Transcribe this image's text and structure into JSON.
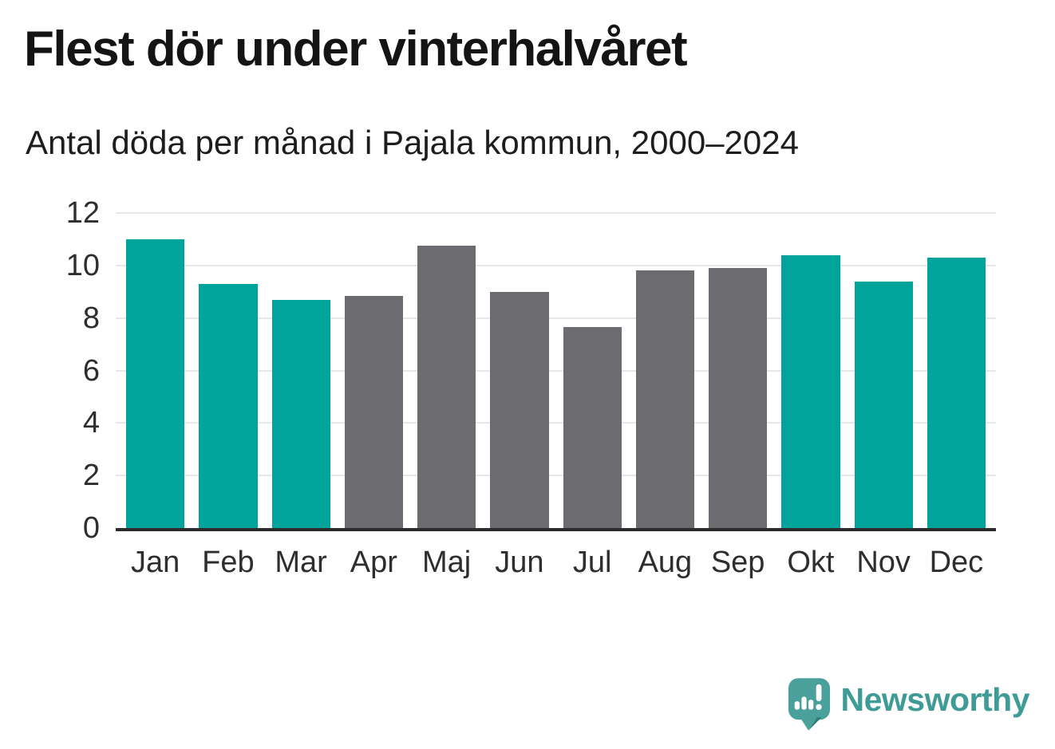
{
  "header": {
    "title": "Flest dör under vinterhalvåret",
    "subtitle": "Antal döda per månad i Pajala kommun, 2000–2024"
  },
  "chart_data": {
    "type": "bar",
    "categories": [
      "Jan",
      "Feb",
      "Mar",
      "Apr",
      "Maj",
      "Jun",
      "Jul",
      "Aug",
      "Sep",
      "Okt",
      "Nov",
      "Dec"
    ],
    "values": [
      11.0,
      9.3,
      8.7,
      8.85,
      10.75,
      9.0,
      7.65,
      9.8,
      9.9,
      10.4,
      9.4,
      10.3
    ],
    "bar_groups": [
      "winter",
      "winter",
      "winter",
      "summer",
      "summer",
      "summer",
      "summer",
      "summer",
      "summer",
      "winter",
      "winter",
      "winter"
    ],
    "title": "Flest dör under vinterhalvåret",
    "subtitle": "Antal döda per månad i Pajala kommun, 2000–2024",
    "xlabel": "",
    "ylabel": "",
    "ylim": [
      0,
      12
    ],
    "yticks": [
      0,
      2,
      4,
      6,
      8,
      10,
      12
    ],
    "grid": true,
    "legend": "none",
    "palette": {
      "winter": "#00a49a",
      "summer": "#6b6b70"
    }
  },
  "footer": {
    "brand": "Newsworthy"
  },
  "colors": {
    "background": "#ffffff",
    "title_text": "#141414",
    "axis": "#2b2b2b",
    "gridline": "#e7e7e7",
    "tick_label": "#2e2e2e",
    "brand_teal": "#3f9b95"
  }
}
